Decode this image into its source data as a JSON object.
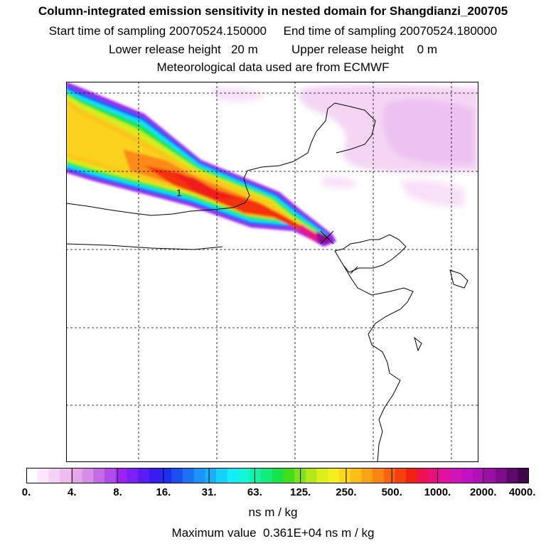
{
  "header": {
    "title": "Column-integrated emission sensitivity in nested domain for Shangdianzi_200705",
    "sampling": "Start time of sampling 20070524.150000     End time of sampling 20070524.180000",
    "release": "Lower release height   20 m          Upper release height    0 m",
    "meteo": "Meteorological data used are from ECMWF"
  },
  "map": {
    "contour_label": "1",
    "station_marker": "receptor-cross-icon"
  },
  "legend": {
    "tick_labels": [
      "0.",
      "4.",
      "8.",
      "16.",
      "31.",
      "63.",
      "125.",
      "250.",
      "500.",
      "1000.",
      "2000.",
      "4000."
    ],
    "colors": [
      "#ffffff",
      "#fbe6fb",
      "#f5d2f5",
      "#efbcef",
      "#e3a6e9",
      "#d58ee6",
      "#c46ae6",
      "#b24aee",
      "#9e22f5",
      "#7d1ff8",
      "#5a1cf6",
      "#3a1cf2",
      "#1e2ef0",
      "#1b4ff2",
      "#1a72f4",
      "#1b93f7",
      "#17b1fa",
      "#14d2fc",
      "#10eefc",
      "#0ff7d8",
      "#10f3a9",
      "#12ec78",
      "#17e34b",
      "#42dd1c",
      "#7fe11a",
      "#b2e81a",
      "#dcef1b",
      "#f5f01d",
      "#fbd81c",
      "#fcbf18",
      "#fca314",
      "#fb8412",
      "#f9640f",
      "#f6410e",
      "#f3210f",
      "#ef1151",
      "#e8107f",
      "#df12a4",
      "#d014b9",
      "#c012c2",
      "#b011b8",
      "#9a10a4",
      "#7e0c88",
      "#5e086a",
      "#3e0548"
    ],
    "units": "ns m / kg"
  },
  "footer": {
    "max_value": "Maximum value  0.361E+04 ns m / kg"
  }
}
